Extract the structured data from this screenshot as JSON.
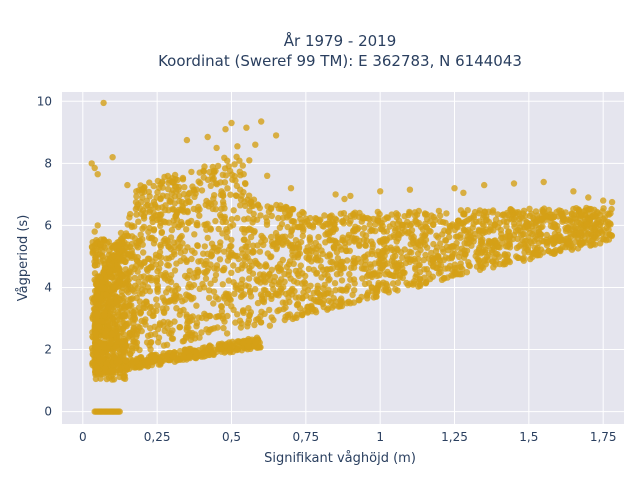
{
  "chart_data": {
    "type": "scatter",
    "title_line1": "År 1979 - 2019",
    "title_line2": "Koordinat (Sweref 99 TM): E 362783, N 6144043",
    "xlabel": "Signifikant våghöjd (m)",
    "ylabel": "Vågperiod (s)",
    "xlim": [
      -0.07,
      1.82
    ],
    "ylim": [
      -0.4,
      10.3
    ],
    "x_ticks": [
      0,
      0.25,
      0.5,
      0.75,
      1,
      1.25,
      1.5,
      1.75
    ],
    "x_tick_labels": [
      "0",
      "0,25",
      "0,5",
      "0,75",
      "1",
      "1,25",
      "1,5",
      "1,75"
    ],
    "y_ticks": [
      0,
      2,
      4,
      6,
      8,
      10
    ],
    "y_tick_labels": [
      "0",
      "2",
      "4",
      "6",
      "8",
      "10"
    ],
    "grid": true,
    "marker_color": "#D4A017",
    "plot_bg": "#E5E5EE",
    "series": [
      {
        "points": [
          [
            0.07,
            9.95
          ],
          [
            0.03,
            8.0
          ],
          [
            0.04,
            7.85
          ],
          [
            0.05,
            7.65
          ],
          [
            0.1,
            8.2
          ],
          [
            0.48,
            9.1
          ],
          [
            0.5,
            9.3
          ],
          [
            0.55,
            9.15
          ],
          [
            0.6,
            9.35
          ],
          [
            0.42,
            8.85
          ],
          [
            0.58,
            8.6
          ],
          [
            0.65,
            8.9
          ],
          [
            0.35,
            8.75
          ],
          [
            0.7,
            7.2
          ],
          [
            0.85,
            7.0
          ],
          [
            0.88,
            6.85
          ],
          [
            0.9,
            6.95
          ],
          [
            1.0,
            7.1
          ],
          [
            1.1,
            7.15
          ],
          [
            1.25,
            7.2
          ],
          [
            1.28,
            7.05
          ],
          [
            1.35,
            7.3
          ],
          [
            1.45,
            7.35
          ],
          [
            1.55,
            7.4
          ],
          [
            1.65,
            7.1
          ],
          [
            1.7,
            6.9
          ],
          [
            1.75,
            6.8
          ],
          [
            1.78,
            6.75
          ],
          [
            0.45,
            8.5
          ],
          [
            0.52,
            8.55
          ],
          [
            0.3,
            7.4
          ],
          [
            0.15,
            7.3
          ],
          [
            0.18,
            7.1
          ],
          [
            0.2,
            6.9
          ],
          [
            0.56,
            8.1
          ],
          [
            0.62,
            7.6
          ],
          [
            0.04,
            5.8
          ],
          [
            0.05,
            6.0
          ],
          [
            0.06,
            5.4
          ],
          [
            0.07,
            4.5
          ]
        ]
      }
    ]
  }
}
